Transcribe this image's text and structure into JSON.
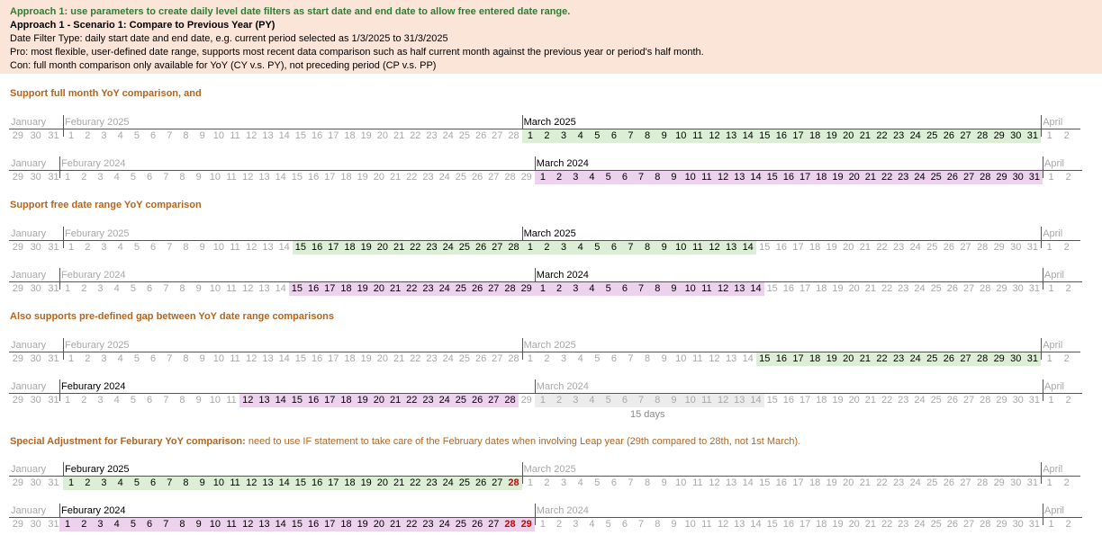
{
  "header": {
    "lines": [
      "Approach 1: use parameters to create daily level date filters as start date and end date to allow free entered date range.",
      "Approach 1 - Scenario 1: Compare to Previous Year (PY)",
      "Date Filter Type: daily start date and end date, e.g. current period selected as 1/3/2025 to 31/3/2025",
      "Pro: most flexible, user-defined date range, supports most recent data comparison such as half current month against the previous year or period's half month.",
      "Con: full month comparison only available for YoY (CY v.s. PY), not preceding period (CP v.s. PP)"
    ]
  },
  "sections": [
    {
      "title": "Support full month YoY comparison, and",
      "rest": ""
    },
    {
      "title": "Support free date range YoY comparison",
      "rest": ""
    },
    {
      "title": "Also supports pre-defined gap between YoY date range comparisons",
      "rest": ""
    },
    {
      "title": "Special Adjustment for Feburary YoY comparison:",
      "rest": " need to use IF statement to take care of the February dates when involving Leap year (29th compared to 28th, not 1st March)."
    }
  ],
  "colors": {
    "green": "#dcefd6",
    "pink": "#ecd2ec",
    "grey": "#ececec",
    "red": "#d00000",
    "section": "#b5651d",
    "header_bg": "#fbe4d8"
  },
  "month_names": {
    "jan": "January",
    "feb2025": "Feburary 2025",
    "feb2024": "Feburary 2024",
    "mar2025": "March 2025",
    "mar2024": "March 2024",
    "apr": "April"
  },
  "gap_note": "15 days",
  "rows": [
    {
      "leap": false,
      "active": [
        "mar"
      ],
      "hl": [
        {
          "m": "mar",
          "from": 1,
          "to": 31,
          "c": "green"
        }
      ]
    },
    {
      "leap": true,
      "active": [
        "mar"
      ],
      "hl": [
        {
          "m": "mar",
          "from": 1,
          "to": 31,
          "c": "pink"
        }
      ]
    },
    {
      "leap": false,
      "active": [
        "mar"
      ],
      "hl": [
        {
          "m": "feb",
          "from": 15,
          "to": 28,
          "c": "green"
        },
        {
          "m": "mar",
          "from": 1,
          "to": 14,
          "c": "green"
        }
      ]
    },
    {
      "leap": true,
      "active": [
        "mar"
      ],
      "hl": [
        {
          "m": "feb",
          "from": 15,
          "to": 29,
          "c": "pink"
        },
        {
          "m": "mar",
          "from": 1,
          "to": 14,
          "c": "pink"
        }
      ]
    },
    {
      "leap": false,
      "active": [],
      "hl": [
        {
          "m": "mar",
          "from": 15,
          "to": 31,
          "c": "green"
        }
      ]
    },
    {
      "leap": true,
      "active": [
        "feb"
      ],
      "hl": [
        {
          "m": "feb",
          "from": 12,
          "to": 28,
          "c": "pink"
        },
        {
          "m": "mar",
          "from": 1,
          "to": 14,
          "c": "grey"
        }
      ]
    },
    {
      "leap": false,
      "active": [
        "feb"
      ],
      "hl": [
        {
          "m": "feb",
          "from": 1,
          "to": 28,
          "c": "green"
        }
      ],
      "red": [
        {
          "m": "feb",
          "d": 28
        }
      ]
    },
    {
      "leap": true,
      "active": [
        "feb"
      ],
      "hl": [
        {
          "m": "feb",
          "from": 1,
          "to": 29,
          "c": "pink"
        }
      ],
      "red": [
        {
          "m": "feb",
          "d": 28
        },
        {
          "m": "feb",
          "d": 29
        }
      ]
    }
  ]
}
